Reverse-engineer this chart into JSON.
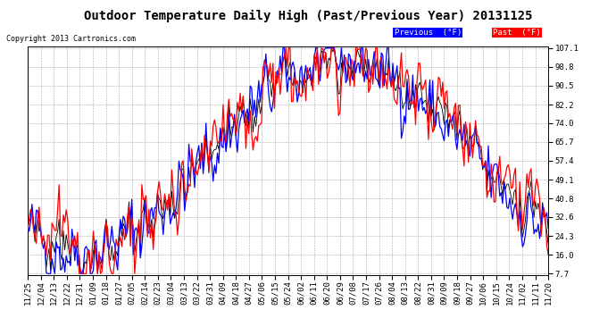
{
  "title": "Outdoor Temperature Daily High (Past/Previous Year) 20131125",
  "copyright": "Copyright 2013 Cartronics.com",
  "yticks": [
    107.1,
    98.8,
    90.5,
    82.2,
    74.0,
    65.7,
    57.4,
    49.1,
    40.8,
    32.6,
    24.3,
    16.0,
    7.7
  ],
  "ymin": 7.7,
  "ymax": 107.1,
  "legend_labels": [
    "Previous  (°F)",
    "Past  (°F)"
  ],
  "line_color_previous": "#0000ff",
  "line_color_past": "#ff0000",
  "line_color_black": "#000000",
  "background_color": "#ffffff",
  "plot_background": "#ffffff",
  "grid_color": "#aaaaaa",
  "title_fontsize": 10,
  "copyright_fontsize": 6,
  "tick_fontsize": 6.5,
  "legend_fontsize": 6.5,
  "x_tick_labels": [
    "11/25",
    "12/04",
    "12/13",
    "12/22",
    "12/31",
    "01/09",
    "01/18",
    "01/27",
    "02/05",
    "02/14",
    "02/23",
    "03/04",
    "03/13",
    "03/22",
    "03/31",
    "04/09",
    "04/18",
    "04/27",
    "05/06",
    "05/15",
    "05/24",
    "06/02",
    "06/11",
    "06/20",
    "06/29",
    "07/08",
    "07/17",
    "07/26",
    "08/04",
    "08/13",
    "08/22",
    "08/31",
    "09/09",
    "09/18",
    "09/27",
    "10/06",
    "10/15",
    "10/24",
    "11/02",
    "11/11",
    "11/20"
  ]
}
